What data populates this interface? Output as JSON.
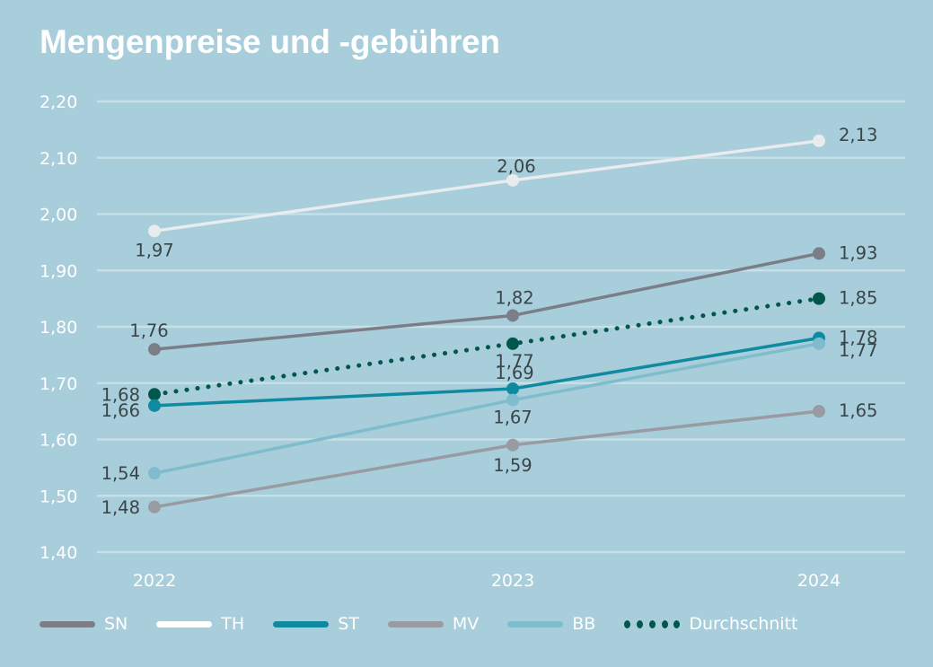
{
  "title": "Mengenpreise und -gebühren",
  "chart_data": {
    "type": "line",
    "title": "Mengenpreise und -gebühren",
    "xlabel": "",
    "ylabel": "",
    "categories": [
      "2022",
      "2023",
      "2024"
    ],
    "ylim": [
      1.4,
      2.2
    ],
    "yticks": [
      2.2,
      2.1,
      2.0,
      1.9,
      1.8,
      1.7,
      1.6,
      1.5,
      1.4
    ],
    "ytick_labels": [
      "2,20",
      "2,10",
      "2,00",
      "1,90",
      "1,80",
      "1,70",
      "1,60",
      "1,50",
      "1,40"
    ],
    "grid": true,
    "legend_position": "bottom",
    "decimal_separator": ",",
    "series": [
      {
        "name": "TH",
        "color": "#e8ecef",
        "style": "solid",
        "values": [
          1.97,
          2.06,
          2.13
        ],
        "labels": [
          "1,97",
          "2,06",
          "2,13"
        ]
      },
      {
        "name": "SN",
        "color": "#7b7d87",
        "style": "solid",
        "values": [
          1.76,
          1.82,
          1.93
        ],
        "labels": [
          "1,76",
          "1,82",
          "1,93"
        ]
      },
      {
        "name": "Durchschnitt",
        "color": "#02574c",
        "style": "dotted",
        "values": [
          1.68,
          1.77,
          1.85
        ],
        "labels": [
          "1,68",
          "1,77",
          "1,85"
        ]
      },
      {
        "name": "ST",
        "color": "#0f8aa0",
        "style": "solid",
        "values": [
          1.66,
          1.69,
          1.78
        ],
        "labels": [
          "1,66",
          "1,69",
          "1,78"
        ]
      },
      {
        "name": "BB",
        "color": "#7fbccc",
        "style": "solid",
        "values": [
          1.54,
          1.67,
          1.77
        ],
        "labels": [
          "1,54",
          "1,67",
          "1,77"
        ]
      },
      {
        "name": "MV",
        "color": "#999ba3",
        "style": "solid",
        "values": [
          1.48,
          1.59,
          1.65
        ],
        "labels": [
          "1,48",
          "1,59",
          "1,65"
        ]
      }
    ]
  },
  "legend": [
    {
      "name": "SN",
      "color": "#7b7d87",
      "style": "solid"
    },
    {
      "name": "TH",
      "color": "#ffffff",
      "style": "solid"
    },
    {
      "name": "ST",
      "color": "#0f8aa0",
      "style": "solid"
    },
    {
      "name": "MV",
      "color": "#999ba3",
      "style": "solid"
    },
    {
      "name": "BB",
      "color": "#7fbccc",
      "style": "solid"
    },
    {
      "name": "Durchschnitt",
      "color": "#02574c",
      "style": "dotted"
    }
  ],
  "colors": {
    "background": "#a8cddb",
    "gridline": "#c6e0e8",
    "tick_text": "#ffffff",
    "data_label_text": "#3a4548"
  }
}
